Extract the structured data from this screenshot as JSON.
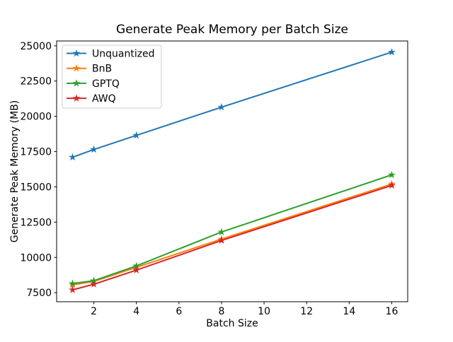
{
  "figure": {
    "background": "#ffffff",
    "axes_edge_color": "#000000",
    "legend_edge_color": "#cccccc"
  },
  "chart_data": {
    "type": "line",
    "title": "Generate Peak Memory per Batch Size",
    "xlabel": "Batch Size",
    "ylabel": "Generate Peak Memory (MB)",
    "x": [
      1,
      2,
      4,
      8,
      16
    ],
    "series": [
      {
        "name": "Unquantized",
        "color": "#1f77b4",
        "marker": "star",
        "values": [
          17100,
          17650,
          18650,
          20650,
          24550
        ]
      },
      {
        "name": "BnB",
        "color": "#ff7f0e",
        "marker": "star",
        "values": [
          8050,
          8300,
          9300,
          11300,
          15200
        ]
      },
      {
        "name": "GPTQ",
        "color": "#2ca02c",
        "marker": "star",
        "values": [
          8150,
          8350,
          9400,
          11800,
          15850
        ]
      },
      {
        "name": "AWQ",
        "color": "#d62728",
        "marker": "star",
        "values": [
          7700,
          8100,
          9100,
          11200,
          15100
        ]
      }
    ],
    "xlim": [
      0.25,
      16.75
    ],
    "ylim": [
      6860,
      25340
    ],
    "xticks": [
      2,
      4,
      6,
      8,
      10,
      12,
      14,
      16
    ],
    "yticks": [
      7500,
      10000,
      12500,
      15000,
      17500,
      20000,
      22500,
      25000
    ],
    "grid": false,
    "legend_position": "upper-left"
  }
}
